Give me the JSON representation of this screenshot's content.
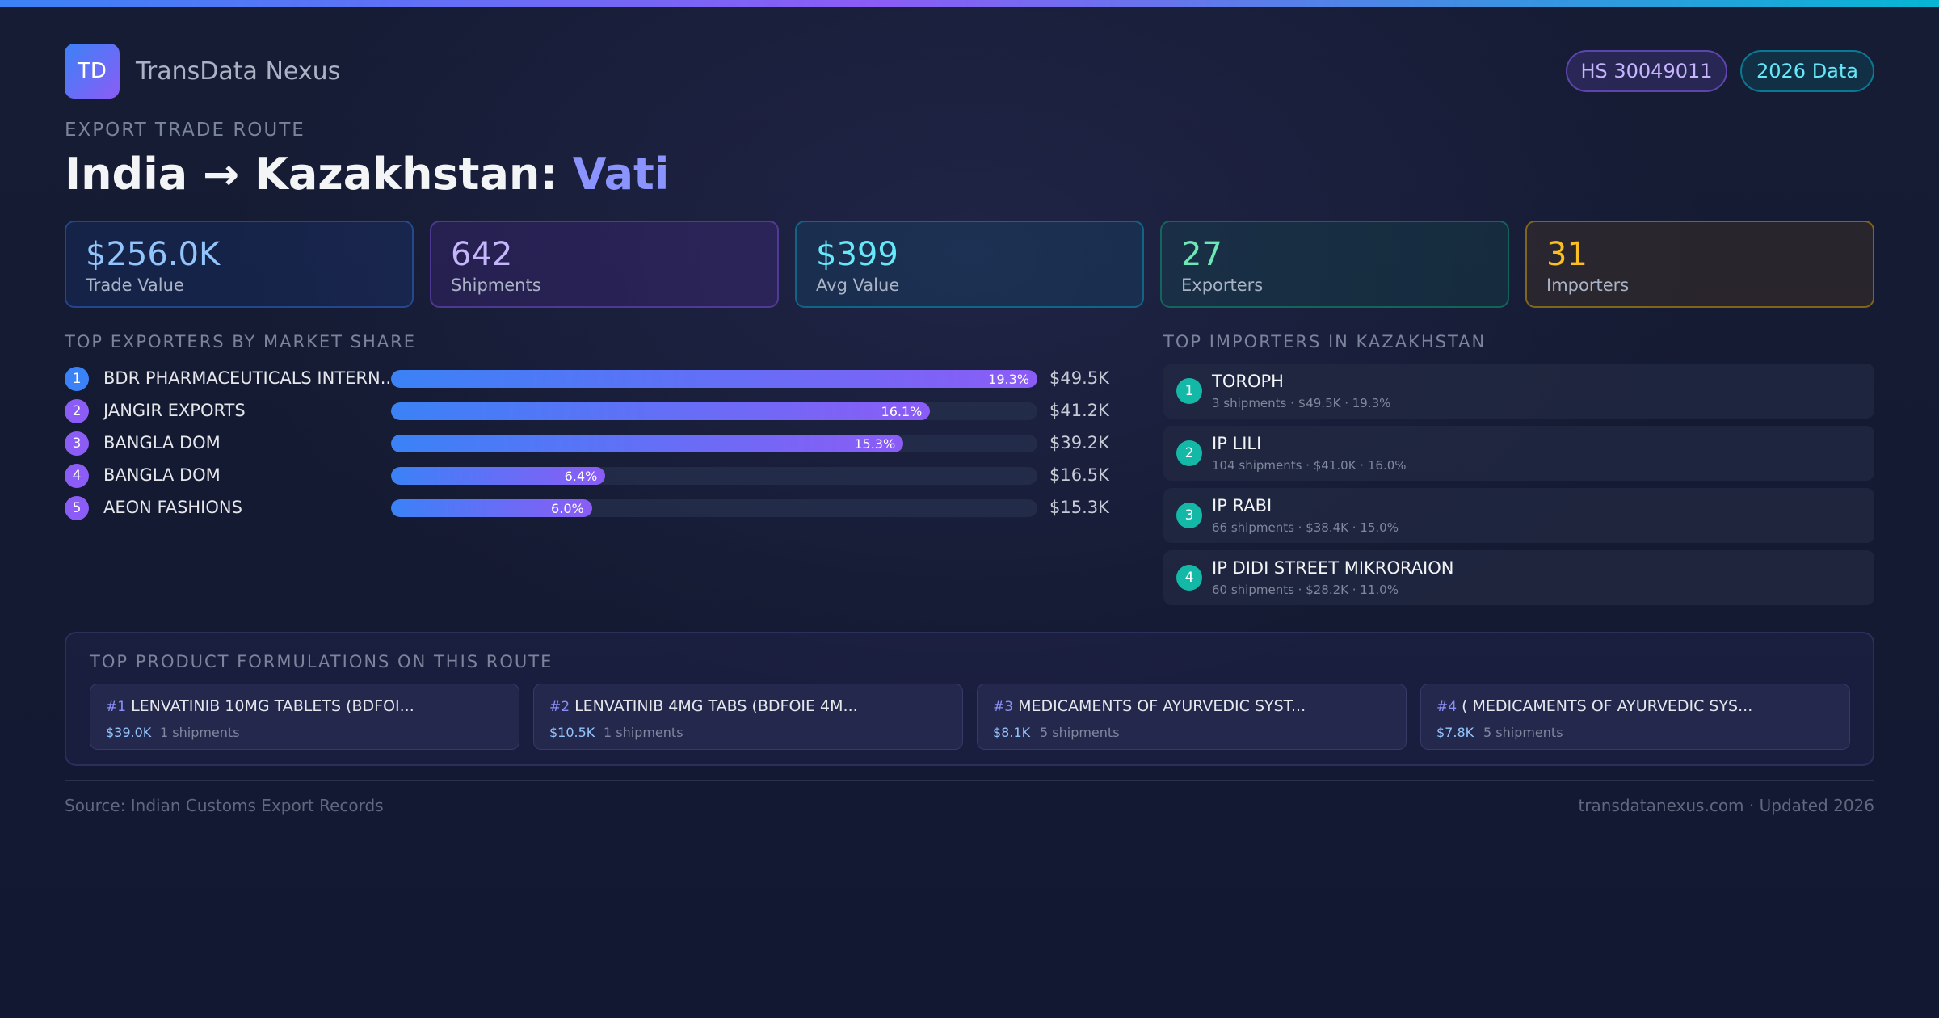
{
  "brand": {
    "logo_text": "TD",
    "name": "TransData Nexus"
  },
  "badges": {
    "hs_code": "HS 30049011",
    "data_year": "2026 Data"
  },
  "eyebrow": "EXPORT TRADE ROUTE",
  "title": {
    "route": "India → Kazakhstan: ",
    "product": "Vati"
  },
  "stats": [
    {
      "value": "$256.0K",
      "label": "Trade Value"
    },
    {
      "value": "642",
      "label": "Shipments"
    },
    {
      "value": "$399",
      "label": "Avg Value"
    },
    {
      "value": "27",
      "label": "Exporters"
    },
    {
      "value": "31",
      "label": "Importers"
    }
  ],
  "exporters": {
    "heading": "TOP EXPORTERS BY MARKET SHARE",
    "items": [
      {
        "rank": "1",
        "name": "BDR PHARMACEUTICALS INTERN...",
        "share": 19.3,
        "share_label": "19.3%",
        "value": "$49.5K",
        "rank_color": "#3b82f6"
      },
      {
        "rank": "2",
        "name": "JANGIR EXPORTS",
        "share": 16.1,
        "share_label": "16.1%",
        "value": "$41.2K",
        "rank_color": "#8b5cf6"
      },
      {
        "rank": "3",
        "name": "BANGLA DOM",
        "share": 15.3,
        "share_label": "15.3%",
        "value": "$39.2K",
        "rank_color": "#8b5cf6"
      },
      {
        "rank": "4",
        "name": "BANGLA DOM",
        "share": 6.4,
        "share_label": "6.4%",
        "value": "$16.5K",
        "rank_color": "#8b5cf6"
      },
      {
        "rank": "5",
        "name": "AEON FASHIONS",
        "share": 6.0,
        "share_label": "6.0%",
        "value": "$15.3K",
        "rank_color": "#8b5cf6"
      }
    ]
  },
  "importers": {
    "heading": "TOP IMPORTERS IN KAZAKHSTAN",
    "items": [
      {
        "rank": "1",
        "name": "TOROPH",
        "meta": "3 shipments · $49.5K · 19.3%"
      },
      {
        "rank": "2",
        "name": "IP LILI",
        "meta": "104 shipments · $41.0K · 16.0%"
      },
      {
        "rank": "3",
        "name": "IP RABI",
        "meta": "66 shipments · $38.4K · 15.0%"
      },
      {
        "rank": "4",
        "name": "IP DIDI STREET MIKRORAION",
        "meta": "60 shipments · $28.2K · 11.0%"
      }
    ]
  },
  "products": {
    "heading": "TOP PRODUCT FORMULATIONS ON THIS ROUTE",
    "items": [
      {
        "num": "#1",
        "name": "LENVATINIB 10MG TABLETS (BDFOI...",
        "value": "$39.0K",
        "shipments": "1 shipments"
      },
      {
        "num": "#2",
        "name": "LENVATINIB 4MG TABS (BDFOIE 4M...",
        "value": "$10.5K",
        "shipments": "1 shipments"
      },
      {
        "num": "#3",
        "name": "MEDICAMENTS OF AYURVEDIC SYST...",
        "value": "$8.1K",
        "shipments": "5 shipments"
      },
      {
        "num": "#4",
        "name": "( MEDICAMENTS OF AYURVEDIC SYS...",
        "value": "$7.8K",
        "shipments": "5 shipments"
      }
    ]
  },
  "footer": {
    "source": "Source: Indian Customs Export Records",
    "site": "transdatanexus.com · Updated 2026"
  }
}
